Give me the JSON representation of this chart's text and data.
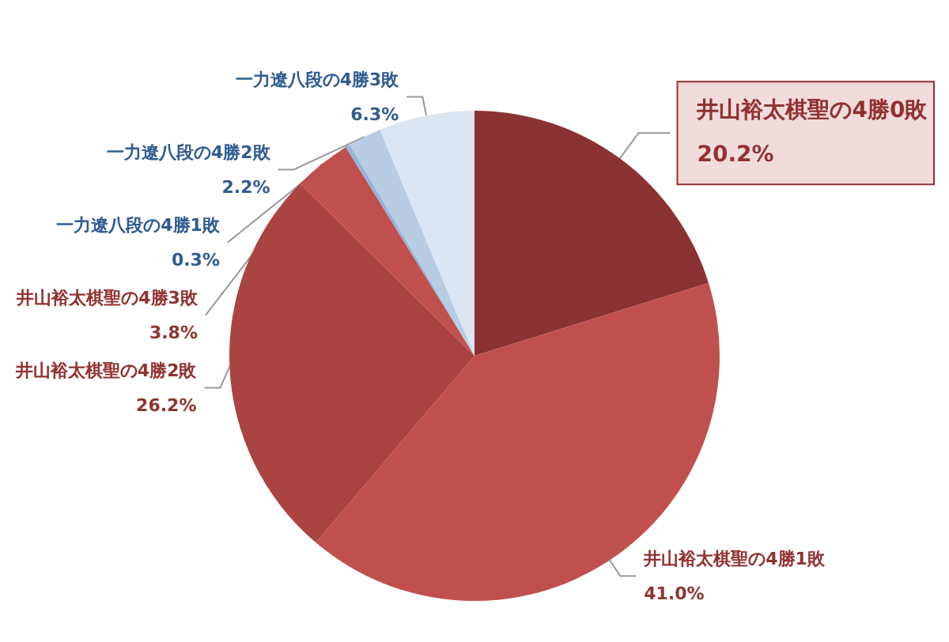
{
  "chart_data": {
    "type": "pie",
    "categories": [
      "井山裕太棋聖の4勝0敗",
      "井山裕太棋聖の4勝1敗",
      "井山裕太棋聖の4勝2敗",
      "井山裕太棋聖の4勝3敗",
      "一力遼八段の4勝1敗",
      "一力遼八段の4勝2敗",
      "一力遼八段の4勝3敗"
    ],
    "values": [
      20.2,
      41.0,
      26.2,
      3.8,
      0.3,
      2.2,
      6.3
    ],
    "value_labels": [
      "20.2%",
      "41.0%",
      "26.2%",
      "3.8%",
      "0.3%",
      "2.2%",
      "6.3%"
    ],
    "colors": [
      "#8b3332",
      "#c0504d",
      "#aa4441",
      "#c0504d",
      "#95b3d7",
      "#b8cce4",
      "#dce6f2"
    ],
    "legend": false
  }
}
